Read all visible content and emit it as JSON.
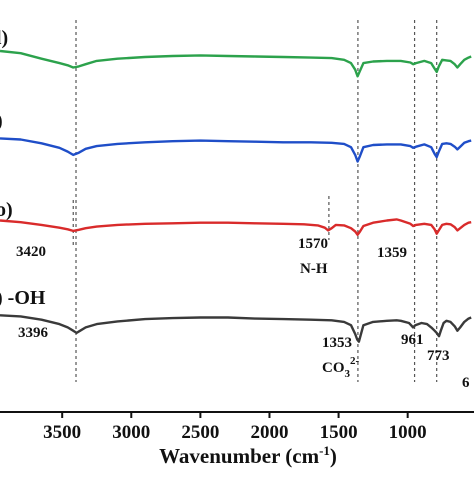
{
  "chart_data": {
    "type": "line",
    "title": "",
    "xlabel": "Wavenumber (cm",
    "xlabel_sup": "-1",
    "xlabel_close": ")",
    "ylabel": "",
    "xlim": [
      3950,
      520
    ],
    "x_reversed": true,
    "grid": false,
    "x_ticks": [
      3500,
      3000,
      2500,
      2000,
      1500,
      1000
    ],
    "x_tick_labels": [
      "3500",
      "3000",
      "2500",
      "2000",
      "1500",
      "1000"
    ],
    "reference_lines": [
      3400,
      1360,
      950,
      790
    ],
    "series": [
      {
        "label": "l)",
        "color": "#2ca24c",
        "baseline": 0,
        "points": [
          [
            3950,
            -20
          ],
          [
            3800,
            -16
          ],
          [
            3650,
            -6
          ],
          [
            3520,
            2
          ],
          [
            3460,
            6
          ],
          [
            3420,
            10
          ],
          [
            3380,
            8
          ],
          [
            3330,
            4
          ],
          [
            3250,
            -2
          ],
          [
            3100,
            -6
          ],
          [
            2900,
            -9
          ],
          [
            2700,
            -11
          ],
          [
            2500,
            -12
          ],
          [
            2300,
            -11
          ],
          [
            2100,
            -10
          ],
          [
            1900,
            -9
          ],
          [
            1700,
            -8
          ],
          [
            1550,
            -7
          ],
          [
            1460,
            -4
          ],
          [
            1410,
            2
          ],
          [
            1380,
            14
          ],
          [
            1362,
            26
          ],
          [
            1345,
            16
          ],
          [
            1320,
            2
          ],
          [
            1250,
            -1
          ],
          [
            1150,
            -2
          ],
          [
            1050,
            -2
          ],
          [
            980,
            1
          ],
          [
            960,
            4
          ],
          [
            940,
            2
          ],
          [
            880,
            -2
          ],
          [
            830,
            2
          ],
          [
            805,
            12
          ],
          [
            790,
            18
          ],
          [
            775,
            8
          ],
          [
            750,
            -4
          ],
          [
            720,
            -3
          ],
          [
            690,
            -2
          ],
          [
            660,
            4
          ],
          [
            640,
            10
          ],
          [
            620,
            4
          ],
          [
            590,
            -4
          ],
          [
            560,
            -8
          ],
          [
            540,
            -10
          ]
        ]
      },
      {
        "label": ")",
        "color": "#1f4ec8",
        "baseline": 0,
        "points": [
          [
            3950,
            -12
          ],
          [
            3800,
            -10
          ],
          [
            3650,
            -3
          ],
          [
            3520,
            5
          ],
          [
            3460,
            12
          ],
          [
            3420,
            18
          ],
          [
            3380,
            14
          ],
          [
            3330,
            7
          ],
          [
            3250,
            2
          ],
          [
            3100,
            -2
          ],
          [
            2900,
            -5
          ],
          [
            2700,
            -7
          ],
          [
            2500,
            -8
          ],
          [
            2300,
            -7
          ],
          [
            2100,
            -6
          ],
          [
            1900,
            -5
          ],
          [
            1700,
            -5
          ],
          [
            1550,
            -4
          ],
          [
            1460,
            -2
          ],
          [
            1410,
            4
          ],
          [
            1380,
            18
          ],
          [
            1362,
            30
          ],
          [
            1345,
            20
          ],
          [
            1320,
            4
          ],
          [
            1250,
            0
          ],
          [
            1150,
            -1
          ],
          [
            1050,
            -1
          ],
          [
            980,
            2
          ],
          [
            960,
            5
          ],
          [
            940,
            3
          ],
          [
            880,
            -1
          ],
          [
            830,
            4
          ],
          [
            805,
            16
          ],
          [
            790,
            22
          ],
          [
            775,
            12
          ],
          [
            750,
            -2
          ],
          [
            720,
            -3
          ],
          [
            690,
            -2
          ],
          [
            660,
            3
          ],
          [
            640,
            8
          ],
          [
            620,
            3
          ],
          [
            590,
            -4
          ],
          [
            560,
            -7
          ],
          [
            540,
            -8
          ]
        ]
      },
      {
        "label": "o)",
        "color": "#d92b2b",
        "baseline": 0,
        "points": [
          [
            3950,
            -10
          ],
          [
            3800,
            -7
          ],
          [
            3650,
            -2
          ],
          [
            3520,
            3
          ],
          [
            3460,
            6
          ],
          [
            3420,
            9
          ],
          [
            3380,
            7
          ],
          [
            3330,
            4
          ],
          [
            3250,
            1
          ],
          [
            3100,
            -2
          ],
          [
            2900,
            -4
          ],
          [
            2700,
            -5
          ],
          [
            2500,
            -6
          ],
          [
            2300,
            -6
          ],
          [
            2100,
            -5
          ],
          [
            1900,
            -4
          ],
          [
            1750,
            -3
          ],
          [
            1650,
            -1
          ],
          [
            1600,
            3
          ],
          [
            1575,
            8
          ],
          [
            1550,
            4
          ],
          [
            1520,
            -2
          ],
          [
            1460,
            -1
          ],
          [
            1410,
            4
          ],
          [
            1380,
            10
          ],
          [
            1362,
            16
          ],
          [
            1345,
            10
          ],
          [
            1320,
            0
          ],
          [
            1250,
            -6
          ],
          [
            1150,
            -10
          ],
          [
            1080,
            -12
          ],
          [
            1050,
            -10
          ],
          [
            980,
            -4
          ],
          [
            960,
            0
          ],
          [
            940,
            -2
          ],
          [
            880,
            -4
          ],
          [
            830,
            -2
          ],
          [
            805,
            6
          ],
          [
            790,
            14
          ],
          [
            775,
            8
          ],
          [
            750,
            -2
          ],
          [
            720,
            -4
          ],
          [
            690,
            -3
          ],
          [
            660,
            2
          ],
          [
            640,
            8
          ],
          [
            620,
            4
          ],
          [
            590,
            -2
          ],
          [
            560,
            -6
          ],
          [
            540,
            -7
          ]
        ]
      },
      {
        "label": ") -OH",
        "color": "#3a3a3a",
        "baseline": 0,
        "points": [
          [
            3950,
            -14
          ],
          [
            3800,
            -12
          ],
          [
            3650,
            -6
          ],
          [
            3520,
            2
          ],
          [
            3460,
            8
          ],
          [
            3420,
            14
          ],
          [
            3396,
            18
          ],
          [
            3370,
            14
          ],
          [
            3330,
            8
          ],
          [
            3250,
            2
          ],
          [
            3100,
            -3
          ],
          [
            2900,
            -7
          ],
          [
            2700,
            -9
          ],
          [
            2500,
            -10
          ],
          [
            2300,
            -10
          ],
          [
            2100,
            -8
          ],
          [
            1900,
            -7
          ],
          [
            1700,
            -6
          ],
          [
            1550,
            -5
          ],
          [
            1460,
            -2
          ],
          [
            1410,
            4
          ],
          [
            1380,
            20
          ],
          [
            1365,
            30
          ],
          [
            1353,
            34
          ],
          [
            1340,
            22
          ],
          [
            1320,
            4
          ],
          [
            1250,
            -2
          ],
          [
            1150,
            -4
          ],
          [
            1080,
            -5
          ],
          [
            1050,
            -4
          ],
          [
            990,
            0
          ],
          [
            975,
            4
          ],
          [
            961,
            8
          ],
          [
            945,
            4
          ],
          [
            900,
            0
          ],
          [
            860,
            2
          ],
          [
            830,
            8
          ],
          [
            805,
            14
          ],
          [
            790,
            18
          ],
          [
            773,
            24
          ],
          [
            760,
            14
          ],
          [
            740,
            0
          ],
          [
            720,
            -4
          ],
          [
            690,
            -2
          ],
          [
            660,
            6
          ],
          [
            640,
            14
          ],
          [
            620,
            8
          ],
          [
            590,
            -2
          ],
          [
            560,
            -8
          ],
          [
            540,
            -10
          ]
        ]
      }
    ],
    "annotations": [
      {
        "text": "3420"
      },
      {
        "text": "1570"
      },
      {
        "text": "N-H"
      },
      {
        "text": "1359"
      },
      {
        "text": "3396"
      },
      {
        "text": "1353"
      },
      {
        "text": "CO",
        "sub": "3",
        "sup": "2-"
      },
      {
        "text": "961"
      },
      {
        "text": "773"
      },
      {
        "text": "6"
      }
    ]
  }
}
